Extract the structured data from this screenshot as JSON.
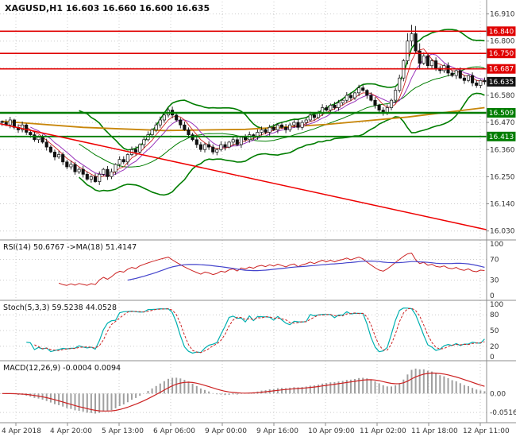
{
  "window": {
    "title": "XAGUSD,H1 16.603 16.660 16.600 16.635"
  },
  "chart_data": {
    "type": "candlestick",
    "symbol": "XAGUSD",
    "timeframe": "H1",
    "quote": {
      "open": 16.603,
      "high": 16.66,
      "low": 16.6,
      "close": 16.635
    },
    "price_axis": {
      "min": 16.0,
      "max": 16.96,
      "ticks": [
        16.91,
        16.8,
        16.69,
        16.58,
        16.47,
        16.36,
        16.25,
        16.14,
        16.03
      ]
    },
    "time_ticks": [
      "4 Apr 2018",
      "4 Apr 20:00",
      "5 Apr 13:00",
      "6 Apr 06:00",
      "9 Apr 00:00",
      "9 Apr 16:00",
      "10 Apr 09:00",
      "11 Apr 02:00",
      "11 Apr 18:00",
      "12 Apr 11:00"
    ],
    "closes": [
      16.47,
      16.46,
      16.48,
      16.45,
      16.44,
      16.46,
      16.43,
      16.42,
      16.4,
      16.41,
      16.39,
      16.37,
      16.35,
      16.33,
      16.34,
      16.31,
      16.29,
      16.3,
      16.27,
      16.28,
      16.26,
      16.24,
      16.25,
      16.23,
      16.26,
      16.28,
      16.25,
      16.27,
      16.3,
      16.32,
      16.31,
      16.34,
      16.36,
      16.35,
      16.38,
      16.4,
      16.42,
      16.44,
      16.46,
      16.48,
      16.5,
      16.52,
      16.5,
      16.48,
      16.46,
      16.44,
      16.42,
      16.4,
      16.38,
      16.36,
      16.38,
      16.37,
      16.35,
      16.36,
      16.38,
      16.37,
      16.39,
      16.4,
      16.38,
      16.41,
      16.4,
      16.42,
      16.41,
      16.43,
      16.44,
      16.43,
      16.45,
      16.44,
      16.46,
      16.45,
      16.44,
      16.46,
      16.47,
      16.45,
      16.47,
      16.48,
      16.5,
      16.49,
      16.51,
      16.53,
      16.52,
      16.54,
      16.53,
      16.55,
      16.56,
      16.58,
      16.57,
      16.59,
      16.61,
      16.6,
      16.58,
      16.56,
      16.54,
      16.52,
      16.51,
      16.53,
      16.56,
      16.6,
      16.65,
      16.72,
      16.8,
      16.83,
      16.76,
      16.71,
      16.74,
      16.7,
      16.72,
      16.69,
      16.68,
      16.7,
      16.67,
      16.66,
      16.68,
      16.65,
      16.64,
      16.66,
      16.63,
      16.62,
      16.64,
      16.635
    ],
    "spike": {
      "from": 100,
      "to": 103,
      "extra": 0.022
    },
    "levels": [
      {
        "label": "16.840",
        "price": 16.84,
        "color": "#e00000",
        "width": 1.6,
        "type": "resistance"
      },
      {
        "label": "16.750",
        "price": 16.75,
        "color": "#e00000",
        "width": 1.6,
        "type": "resistance"
      },
      {
        "label": "16.687",
        "price": 16.687,
        "color": "#e00000",
        "width": 1.6,
        "type": "resistance"
      },
      {
        "label": "16.509",
        "price": 16.509,
        "color": "#007d00",
        "width": 2.6,
        "type": "support"
      },
      {
        "label": "16.413",
        "price": 16.413,
        "color": "#007d00",
        "width": 1.8,
        "type": "support"
      }
    ],
    "current_price": {
      "label": "16.635",
      "price": 16.635,
      "color": "#111111"
    },
    "trendline": {
      "from": 16.465,
      "to": 16.035,
      "color": "#ee0000"
    },
    "gold_ma_points": [
      [
        0,
        16.475
      ],
      [
        20,
        16.45
      ],
      [
        40,
        16.437
      ],
      [
        60,
        16.442
      ],
      [
        80,
        16.462
      ],
      [
        100,
        16.492
      ],
      [
        119,
        16.53
      ]
    ],
    "bollinger": {
      "period": 20,
      "deviation": 2,
      "color": "#007d00"
    },
    "indicators": {
      "rsi": {
        "label": "RSI(14) 50.6767  ->MA(18) 51.4147",
        "period": 14,
        "ma_period": 18,
        "ticks": [
          100,
          70,
          30,
          0
        ],
        "line_color": "#cc2222",
        "ma_color": "#4444cc"
      },
      "stoch": {
        "label": "Stoch(5,3,3) 59.5238 44.0528",
        "k": 5,
        "d": 3,
        "slowing": 3,
        "ticks": [
          100,
          80,
          50,
          20,
          0
        ],
        "main_color": "#00b0b0",
        "signal_color": "#cc2222"
      },
      "macd": {
        "label": "MACD(12,26,9) -0.0004 0.0094",
        "fast": 12,
        "slow": 26,
        "signal": 9,
        "ticks": [
          {
            "label": "0.00",
            "value": 0
          },
          {
            "label": "-0.0516",
            "value": -0.0516
          }
        ],
        "hist_color": "#a0a0a0",
        "signal_color": "#cc2222"
      }
    }
  }
}
